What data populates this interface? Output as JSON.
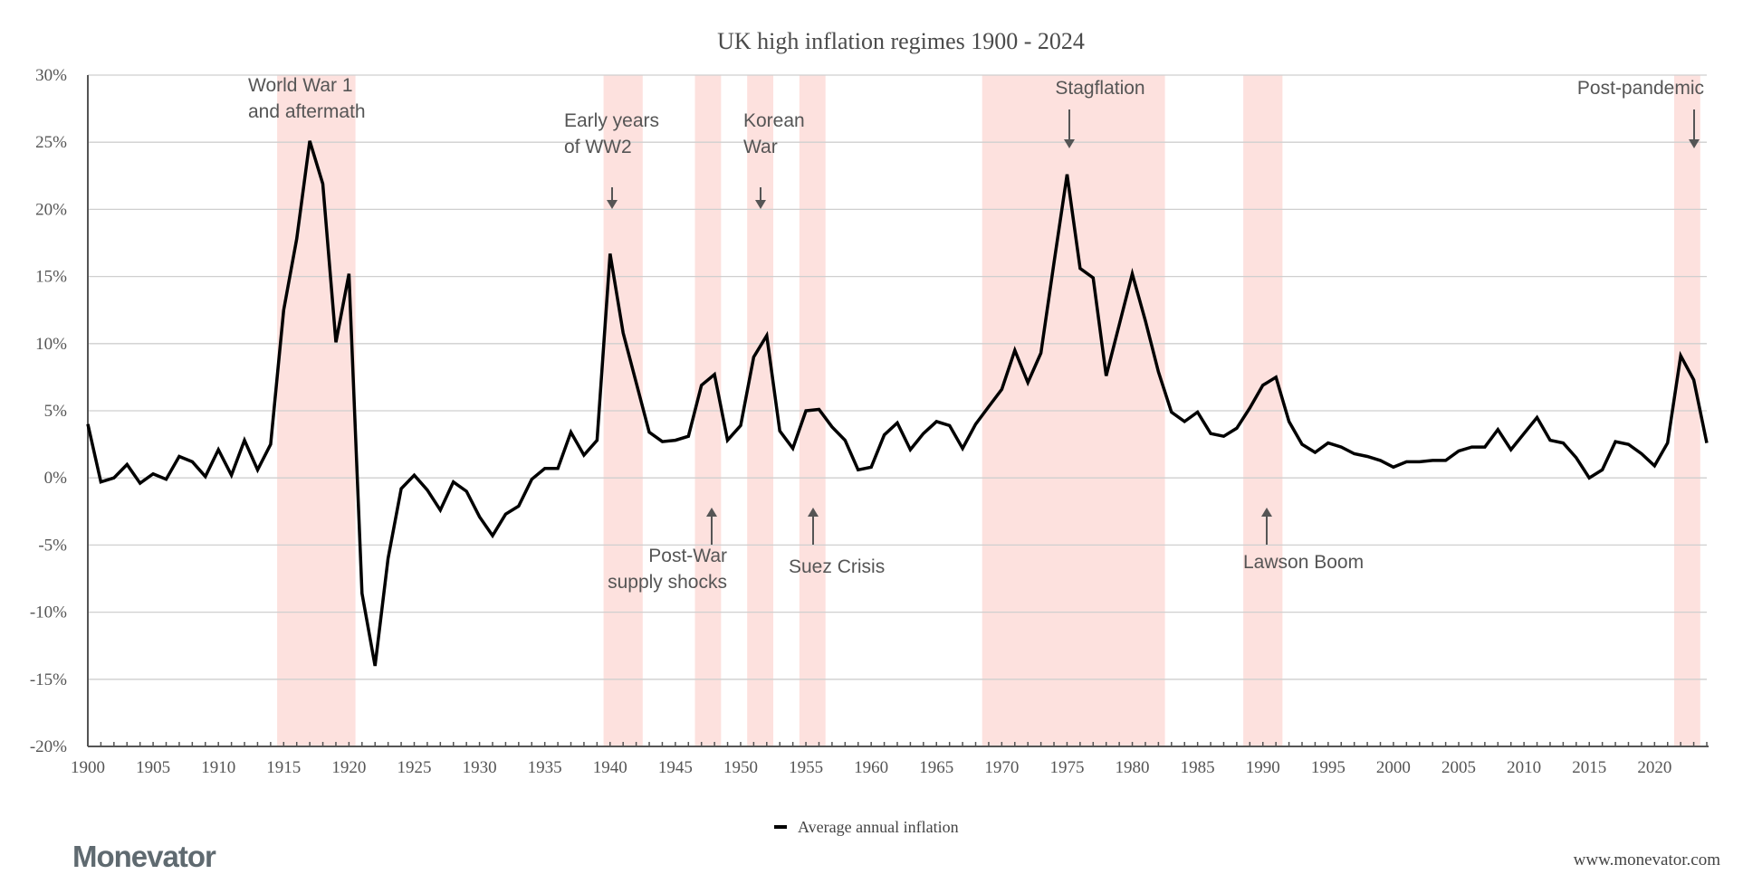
{
  "chart_data": {
    "type": "line",
    "title": "UK high inflation regimes 1900 - 2024",
    "xlabel": "",
    "ylabel": "",
    "xlim": [
      1900,
      2024
    ],
    "ylim": [
      -20,
      30
    ],
    "y_ticks": [
      "-20%",
      "-15%",
      "-10%",
      "-5%",
      "0%",
      "5%",
      "10%",
      "15%",
      "20%",
      "25%",
      "30%"
    ],
    "y_tick_values": [
      -20,
      -15,
      -10,
      -5,
      0,
      5,
      10,
      15,
      20,
      25,
      30
    ],
    "x_ticks": [
      "1900",
      "1905",
      "1910",
      "1915",
      "1920",
      "1925",
      "1930",
      "1935",
      "1940",
      "1945",
      "1950",
      "1955",
      "1960",
      "1965",
      "1970",
      "1975",
      "1980",
      "1985",
      "1990",
      "1995",
      "2000",
      "2005",
      "2010",
      "2015",
      "2020"
    ],
    "grid": "horizontal",
    "legend_position": "bottom",
    "line_color": "#000000",
    "band_color": "#fde1de",
    "series": [
      {
        "name": "Average annual inflation",
        "x_start": 1900,
        "values": [
          4.0,
          -0.3,
          0.0,
          1.0,
          -0.4,
          0.3,
          -0.1,
          1.6,
          1.2,
          0.1,
          2.1,
          0.2,
          2.8,
          0.6,
          2.5,
          12.5,
          17.8,
          25.1,
          21.9,
          10.1,
          15.2,
          -8.6,
          -14.0,
          -6.0,
          -0.8,
          0.2,
          -0.9,
          -2.4,
          -0.3,
          -1.0,
          -2.9,
          -4.3,
          -2.7,
          -2.1,
          -0.1,
          0.7,
          0.7,
          3.4,
          1.7,
          2.8,
          16.7,
          10.8,
          7.1,
          3.4,
          2.7,
          2.8,
          3.1,
          6.9,
          7.7,
          2.8,
          3.9,
          9.0,
          10.6,
          3.5,
          2.2,
          5.0,
          5.1,
          3.8,
          2.8,
          0.6,
          0.8,
          3.2,
          4.1,
          2.1,
          3.3,
          4.2,
          3.9,
          2.2,
          4.0,
          5.3,
          6.6,
          9.5,
          7.1,
          9.3,
          16.0,
          22.6,
          15.6,
          14.9,
          7.6,
          11.4,
          15.2,
          11.7,
          7.9,
          4.9,
          4.2,
          4.9,
          3.3,
          3.1,
          3.7,
          5.2,
          6.9,
          7.5,
          4.2,
          2.5,
          1.9,
          2.6,
          2.3,
          1.8,
          1.6,
          1.3,
          0.8,
          1.2,
          1.2,
          1.3,
          1.3,
          2.0,
          2.3,
          2.3,
          3.6,
          2.1,
          3.3,
          4.5,
          2.8,
          2.6,
          1.5,
          0.0,
          0.6,
          2.7,
          2.5,
          1.8,
          0.9,
          2.6,
          9.1,
          7.3,
          2.6
        ]
      }
    ],
    "shaded_regimes": [
      {
        "start": 1915,
        "end": 1920,
        "label": [
          "World War 1",
          "and aftermath"
        ]
      },
      {
        "start": 1940,
        "end": 1942,
        "label": [
          "Early years",
          "of WW2"
        ]
      },
      {
        "start": 1947,
        "end": 1948,
        "label": [
          "Post-War",
          "supply shocks"
        ]
      },
      {
        "start": 1951,
        "end": 1952,
        "label": [
          "Korean",
          "War"
        ]
      },
      {
        "start": 1955,
        "end": 1956,
        "label": [
          "Suez Crisis"
        ]
      },
      {
        "start": 1969,
        "end": 1982,
        "label": [
          "Stagflation"
        ]
      },
      {
        "start": 1989,
        "end": 1991,
        "label": [
          "Lawson Boom"
        ]
      },
      {
        "start": 2022,
        "end": 2023,
        "label": [
          "Post-pandemic"
        ]
      }
    ]
  },
  "footer": {
    "logo_text": "Monevator",
    "url": "www.monevator.com"
  }
}
